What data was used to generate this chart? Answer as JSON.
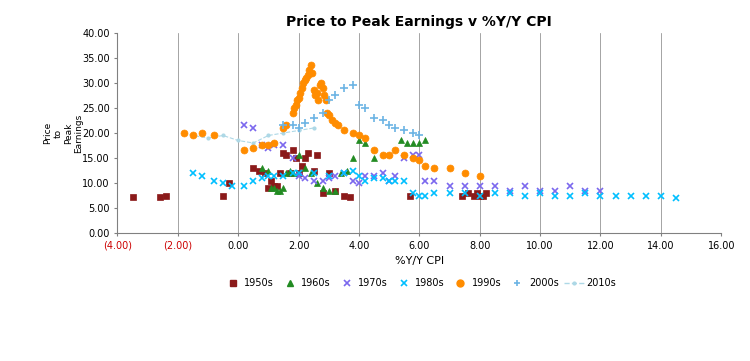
{
  "title": "Price to Peak Earnings v %Y/Y CPI",
  "xlabel": "%Y/Y CPI",
  "xlim": [
    -4,
    16
  ],
  "ylim": [
    0,
    40
  ],
  "xticks": [
    -4,
    -2,
    0,
    2,
    4,
    6,
    8,
    10,
    12,
    14,
    16
  ],
  "yticks": [
    0,
    5,
    10,
    15,
    20,
    25,
    30,
    35,
    40
  ],
  "xticklabels": [
    "(4.00)",
    "(2.00)",
    "0.00",
    "2.00",
    "4.00",
    "6.00",
    "8.00",
    "10.00",
    "12.00",
    "14.00",
    "16.00"
  ],
  "yticklabels": [
    "0.00",
    "5.00",
    "10.00",
    "15.00",
    "20.00",
    "25.00",
    "30.00",
    "35.00",
    "40.00"
  ],
  "vlines": [
    -2,
    0,
    2,
    4,
    6,
    8,
    10,
    12,
    14
  ],
  "neg_tick_color": "#CC0000",
  "background_color": "#FFFFFF",
  "series": {
    "1950s": {
      "color": "#8B1A1A",
      "marker": "s",
      "ms": 4,
      "x": [
        -3.5,
        -2.6,
        -2.4,
        -0.5,
        -0.3,
        0.5,
        0.7,
        0.9,
        1.0,
        1.1,
        1.2,
        1.3,
        1.4,
        1.5,
        1.6,
        1.7,
        1.8,
        1.9,
        2.0,
        2.1,
        2.2,
        2.3,
        2.5,
        2.6,
        2.8,
        3.0,
        3.2,
        3.5,
        3.7,
        5.7,
        7.4,
        7.6,
        7.8,
        7.9,
        8.0,
        8.1,
        8.2
      ],
      "y": [
        7.2,
        7.2,
        7.5,
        7.5,
        10.0,
        13.0,
        12.5,
        12.0,
        9.0,
        10.5,
        9.5,
        9.5,
        12.0,
        16.0,
        15.5,
        12.0,
        16.5,
        15.0,
        12.0,
        13.5,
        15.0,
        16.0,
        12.5,
        15.5,
        8.0,
        12.0,
        8.5,
        7.5,
        7.2,
        7.5,
        7.5,
        8.0,
        7.5,
        8.0,
        7.5,
        7.5,
        8.0
      ]
    },
    "1960s": {
      "color": "#228B22",
      "marker": "^",
      "ms": 4,
      "x": [
        0.8,
        1.0,
        1.1,
        1.2,
        1.3,
        1.4,
        1.5,
        1.6,
        1.7,
        1.8,
        2.0,
        2.2,
        2.4,
        2.6,
        2.8,
        3.0,
        3.2,
        3.4,
        3.6,
        3.8,
        4.0,
        4.2,
        4.5,
        5.4,
        5.6,
        5.8,
        6.0,
        6.2
      ],
      "y": [
        13.0,
        12.5,
        9.0,
        9.0,
        8.5,
        8.5,
        9.0,
        12.0,
        12.5,
        12.0,
        15.5,
        13.0,
        12.0,
        10.0,
        9.0,
        8.5,
        8.5,
        12.0,
        12.5,
        15.0,
        18.5,
        18.0,
        15.0,
        18.5,
        18.0,
        18.0,
        18.0,
        18.5
      ]
    },
    "1970s": {
      "color": "#7B68EE",
      "marker": "x",
      "ms": 5,
      "x": [
        0.2,
        0.5,
        0.8,
        1.0,
        1.2,
        1.5,
        1.8,
        2.0,
        2.2,
        2.5,
        2.8,
        3.0,
        3.2,
        3.5,
        3.8,
        4.0,
        4.2,
        4.5,
        4.8,
        5.0,
        5.2,
        5.5,
        5.8,
        6.0,
        6.2,
        6.5,
        7.0,
        7.5,
        8.0,
        8.5,
        9.0,
        9.5,
        10.0,
        10.5,
        11.0,
        11.5,
        12.0
      ],
      "y": [
        21.5,
        21.0,
        17.5,
        17.0,
        17.5,
        17.5,
        15.0,
        11.5,
        11.0,
        10.5,
        10.5,
        11.0,
        11.5,
        12.0,
        10.5,
        10.0,
        11.5,
        11.5,
        12.0,
        10.5,
        11.5,
        15.0,
        15.5,
        15.5,
        10.5,
        10.5,
        9.5,
        9.5,
        9.5,
        9.5,
        8.5,
        9.5,
        8.5,
        8.5,
        9.5,
        8.5,
        8.5
      ]
    },
    "1980s": {
      "color": "#00BFFF",
      "marker": "x",
      "ms": 5,
      "x": [
        -1.5,
        -1.2,
        -0.8,
        -0.5,
        -0.2,
        0.2,
        0.5,
        0.8,
        1.0,
        1.2,
        1.5,
        1.8,
        2.0,
        2.5,
        3.0,
        3.5,
        3.8,
        4.0,
        4.2,
        4.5,
        4.8,
        5.0,
        5.2,
        5.5,
        5.8,
        6.0,
        6.2,
        6.5,
        7.0,
        7.5,
        8.0,
        8.5,
        9.0,
        9.5,
        10.0,
        10.5,
        11.0,
        11.5,
        12.0,
        12.5,
        13.0,
        13.5,
        14.0,
        14.5
      ],
      "y": [
        12.0,
        11.5,
        10.5,
        10.0,
        9.5,
        9.5,
        10.5,
        11.0,
        11.5,
        11.5,
        11.5,
        12.0,
        12.0,
        12.0,
        11.5,
        12.0,
        12.5,
        11.5,
        10.5,
        11.0,
        11.0,
        10.5,
        10.5,
        10.5,
        8.0,
        7.5,
        7.5,
        8.0,
        8.0,
        8.0,
        7.5,
        8.0,
        8.0,
        7.5,
        8.0,
        7.5,
        7.5,
        8.0,
        7.5,
        7.5,
        7.5,
        7.5,
        7.5,
        7.0
      ]
    },
    "1990s": {
      "color": "#FF8C00",
      "marker": "o",
      "ms": 5,
      "x": [
        -1.8,
        -1.5,
        -1.2,
        -0.8,
        0.2,
        0.5,
        0.8,
        1.0,
        1.2,
        1.5,
        1.6,
        1.8,
        1.85,
        1.9,
        1.95,
        2.0,
        2.05,
        2.1,
        2.15,
        2.2,
        2.25,
        2.3,
        2.35,
        2.4,
        2.45,
        2.5,
        2.55,
        2.6,
        2.65,
        2.7,
        2.75,
        2.8,
        2.85,
        2.9,
        2.95,
        3.0,
        3.1,
        3.2,
        3.3,
        3.5,
        3.8,
        4.0,
        4.2,
        4.5,
        4.8,
        5.0,
        5.2,
        5.5,
        5.8,
        6.0,
        6.2,
        6.5,
        7.0,
        7.5,
        8.0
      ],
      "y": [
        20.0,
        19.5,
        20.0,
        19.5,
        16.5,
        17.0,
        17.5,
        17.5,
        18.0,
        21.0,
        21.5,
        24.0,
        25.0,
        25.5,
        26.5,
        27.0,
        28.0,
        29.0,
        30.0,
        30.5,
        31.0,
        31.5,
        32.5,
        33.5,
        32.0,
        28.5,
        27.5,
        28.0,
        26.5,
        29.5,
        30.0,
        29.0,
        27.5,
        26.5,
        24.0,
        23.5,
        22.5,
        22.0,
        21.5,
        20.5,
        20.0,
        19.5,
        19.0,
        16.5,
        15.5,
        15.5,
        16.5,
        15.5,
        15.0,
        14.5,
        13.5,
        13.0,
        13.0,
        12.0,
        11.5
      ]
    },
    "2000s": {
      "color": "#6CB4E4",
      "marker": "+",
      "ms": 6,
      "x": [
        1.5,
        1.8,
        2.0,
        2.2,
        2.5,
        2.8,
        3.0,
        3.2,
        3.5,
        3.8,
        4.0,
        4.2,
        4.5,
        4.8,
        5.0,
        5.2,
        5.5,
        5.8,
        6.0
      ],
      "y": [
        21.5,
        21.5,
        21.0,
        22.0,
        23.0,
        24.0,
        26.5,
        27.5,
        29.0,
        29.5,
        25.5,
        25.0,
        23.0,
        22.5,
        21.5,
        21.0,
        20.5,
        20.0,
        19.5
      ]
    },
    "2010s": {
      "color": "#ADD8E6",
      "marker": ".",
      "ms": 4,
      "linestyle": "--",
      "x": [
        -1.8,
        -1.5,
        -1.0,
        -0.5,
        0.0,
        0.5,
        1.0,
        1.5,
        2.0,
        2.5
      ],
      "y": [
        20.0,
        19.5,
        19.0,
        19.5,
        18.5,
        18.0,
        19.5,
        20.0,
        20.5,
        21.0
      ]
    }
  }
}
